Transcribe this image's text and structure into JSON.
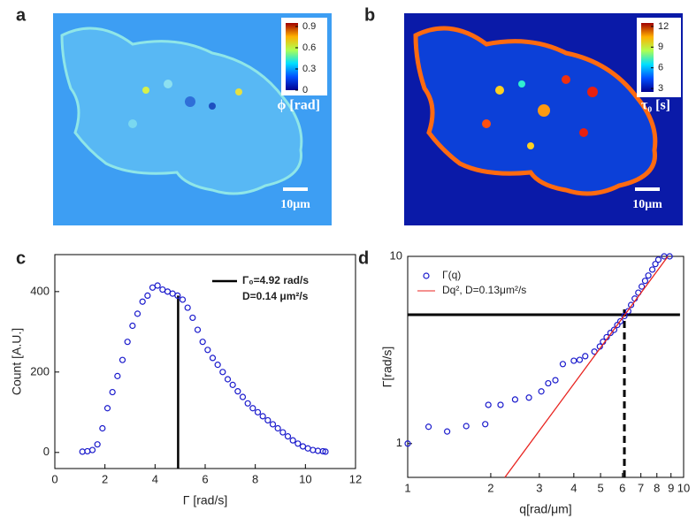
{
  "image_panels": [
    {
      "label": "a",
      "colorbar_lim": [
        0,
        0.95
      ],
      "colorbar_ticks": [
        0,
        0.3,
        0.6,
        0.9
      ],
      "quantity": "ϕ [rad]",
      "scale_bar": "10μm"
    },
    {
      "label": "b",
      "colorbar_lim": [
        2.5,
        12.5
      ],
      "colorbar_ticks": [
        3,
        6,
        9,
        12
      ],
      "quantity": "τ₀ [s]",
      "scale_bar": "10μm"
    }
  ],
  "chart_data": [
    {
      "type": "scatter",
      "label": "c",
      "xlabel": "Γ [rad/s]",
      "ylabel": "Count [A.U.]",
      "xlim": [
        0,
        12
      ],
      "xticks": [
        0,
        2,
        4,
        6,
        8,
        10,
        12
      ],
      "ylim": [
        -40,
        492
      ],
      "yticks": [
        0,
        200,
        400
      ],
      "x": [
        1.1,
        1.3,
        1.5,
        1.7,
        1.9,
        2.1,
        2.3,
        2.5,
        2.7,
        2.9,
        3.1,
        3.3,
        3.5,
        3.7,
        3.9,
        4.1,
        4.3,
        4.5,
        4.7,
        4.9,
        5.1,
        5.3,
        5.5,
        5.7,
        5.9,
        6.1,
        6.3,
        6.5,
        6.7,
        6.9,
        7.1,
        7.3,
        7.5,
        7.7,
        7.9,
        8.1,
        8.3,
        8.5,
        8.7,
        8.9,
        9.1,
        9.3,
        9.5,
        9.7,
        9.9,
        10.1,
        10.3,
        10.5,
        10.7,
        10.8
      ],
      "series": [
        {
          "color": "#1a1acc",
          "style": "markers",
          "values": [
            2,
            3,
            6,
            20,
            60,
            110,
            150,
            190,
            230,
            275,
            315,
            345,
            375,
            390,
            410,
            415,
            405,
            400,
            395,
            390,
            380,
            360,
            335,
            305,
            275,
            255,
            235,
            218,
            200,
            182,
            168,
            152,
            138,
            122,
            110,
            100,
            90,
            80,
            70,
            60,
            50,
            40,
            30,
            22,
            15,
            10,
            6,
            4,
            3,
            2
          ]
        }
      ],
      "reference_line": {
        "x": 4.92,
        "y_top": 390,
        "color": "#000000",
        "label": "Γ₀=4.92 rad/s"
      },
      "annotation": "D=0.14 μm²/s"
    },
    {
      "type": "scatter",
      "label": "d",
      "xlabel": "q[rad/μm]",
      "ylabel": "Γ[rad/s]",
      "log_x": true,
      "log_y": true,
      "xlim": [
        1,
        10
      ],
      "xticks": [
        1,
        2,
        3,
        4,
        5,
        6,
        7,
        8,
        9,
        10
      ],
      "ylim": [
        0.66,
        10
      ],
      "yticks": [
        1,
        10
      ],
      "series": [
        {
          "name": "Γ(q)",
          "color": "#1a1acc",
          "style": "markers",
          "x": [
            1,
            1.19,
            1.39,
            1.63,
            1.91,
            1.96,
            2.17,
            2.45,
            2.75,
            3.05,
            3.23,
            3.43,
            3.65,
            4.0,
            4.2,
            4.4,
            4.75,
            4.97,
            5.1,
            5.26,
            5.43,
            5.6,
            5.75,
            5.9,
            6.1,
            6.3,
            6.45,
            6.65,
            6.85,
            7.05,
            7.25,
            7.45,
            7.7,
            7.9,
            8.1,
            8.5,
            8.9
          ],
          "values": [
            1.0,
            1.23,
            1.16,
            1.24,
            1.27,
            1.61,
            1.61,
            1.72,
            1.76,
            1.9,
            2.1,
            2.18,
            2.66,
            2.77,
            2.8,
            2.93,
            3.1,
            3.3,
            3.5,
            3.7,
            3.9,
            4.05,
            4.3,
            4.5,
            4.8,
            5.1,
            5.5,
            5.95,
            6.4,
            6.9,
            7.4,
            7.9,
            8.5,
            9.1,
            9.6,
            10,
            10
          ]
        },
        {
          "name": "Dq², D=0.13μm²/s",
          "color": "#e8231f",
          "style": "line",
          "x": [
            2.25,
            8.77
          ],
          "values": [
            0.66,
            10
          ]
        }
      ],
      "guide_lines": [
        {
          "orientation": "h",
          "at": 4.88,
          "from": 1,
          "to": 9.7,
          "dashed": false
        },
        {
          "orientation": "v",
          "at": 6.1,
          "from": 0.66,
          "to": 5.3,
          "dashed": true
        }
      ]
    }
  ]
}
